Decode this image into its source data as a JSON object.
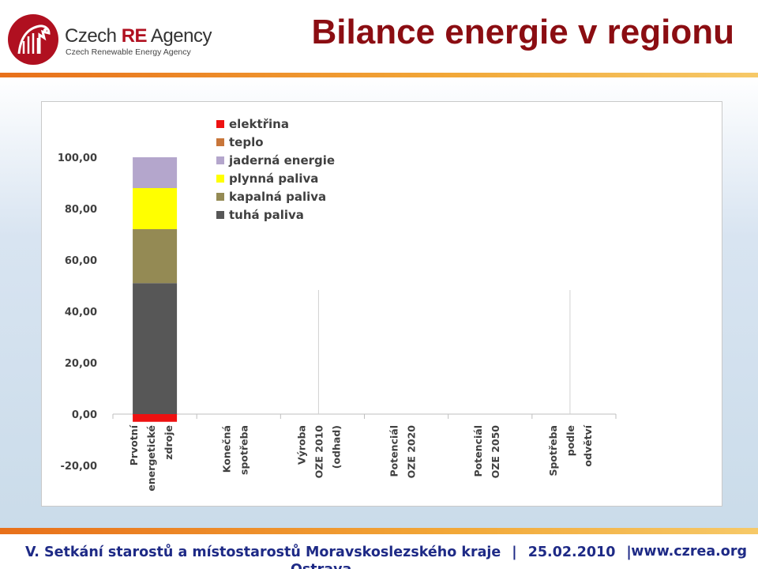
{
  "header": {
    "logo_name": "Czech RE Agency",
    "logo_name_part1": "Czech ",
    "logo_name_part2": "RE",
    "logo_name_part3": " Agency",
    "logo_sub": "Czech Renewable Energy Agency",
    "title": "Bilance energie v regionu"
  },
  "footer": {
    "event": "V. Setkání starostů a místostarostů Moravskoslezského kraje",
    "date": "25.02.2010",
    "url": "www.czrea.org",
    "city": "Ostrava"
  },
  "colors": {
    "title": "#8b0d12",
    "footer": "#1e2a86",
    "accent": "#e8701a"
  },
  "chart_data": {
    "type": "bar",
    "stacked": true,
    "categories": [
      [
        "Prvotní",
        "energetické",
        "zdroje"
      ],
      [
        "Konečná",
        "spotřeba"
      ],
      [
        "Výroba",
        "OZE 2010",
        "(odhad)"
      ],
      [
        "Potenciál",
        "OZE 2020"
      ],
      [
        "Potenciál",
        "OZE 2050"
      ],
      [
        "Spotřeba",
        "podle",
        "odvětví"
      ]
    ],
    "series": [
      {
        "name": "elektřina",
        "color": "#ee1111",
        "values": [
          -3,
          0,
          0,
          0,
          0,
          0
        ]
      },
      {
        "name": "teplo",
        "color": "#c8763a",
        "values": [
          0,
          0,
          0,
          0,
          0,
          0
        ]
      },
      {
        "name": "jaderná energie",
        "color": "#b4a6cc",
        "values": [
          12,
          0,
          0,
          0,
          0,
          0
        ]
      },
      {
        "name": "plynná paliva",
        "color": "#ffff00",
        "values": [
          16,
          0,
          0,
          0,
          0,
          0
        ]
      },
      {
        "name": "kapalná paliva",
        "color": "#948a54",
        "values": [
          21,
          0,
          0,
          0,
          0,
          0
        ]
      },
      {
        "name": "tuhá paliva",
        "color": "#575757",
        "values": [
          51,
          0,
          0,
          0,
          0,
          0
        ]
      }
    ],
    "stack_order": [
      "tuhá paliva",
      "kapalná paliva",
      "plynná paliva",
      "jaderná energie",
      "teplo",
      "elektřina"
    ],
    "yticks": [
      "-20,00",
      "0,00",
      "20,00",
      "40,00",
      "60,00",
      "80,00",
      "100,00"
    ],
    "ylim": [
      -20,
      100
    ],
    "legend_position": "top-left",
    "grid": false,
    "title": "",
    "xlabel": "",
    "ylabel": ""
  }
}
